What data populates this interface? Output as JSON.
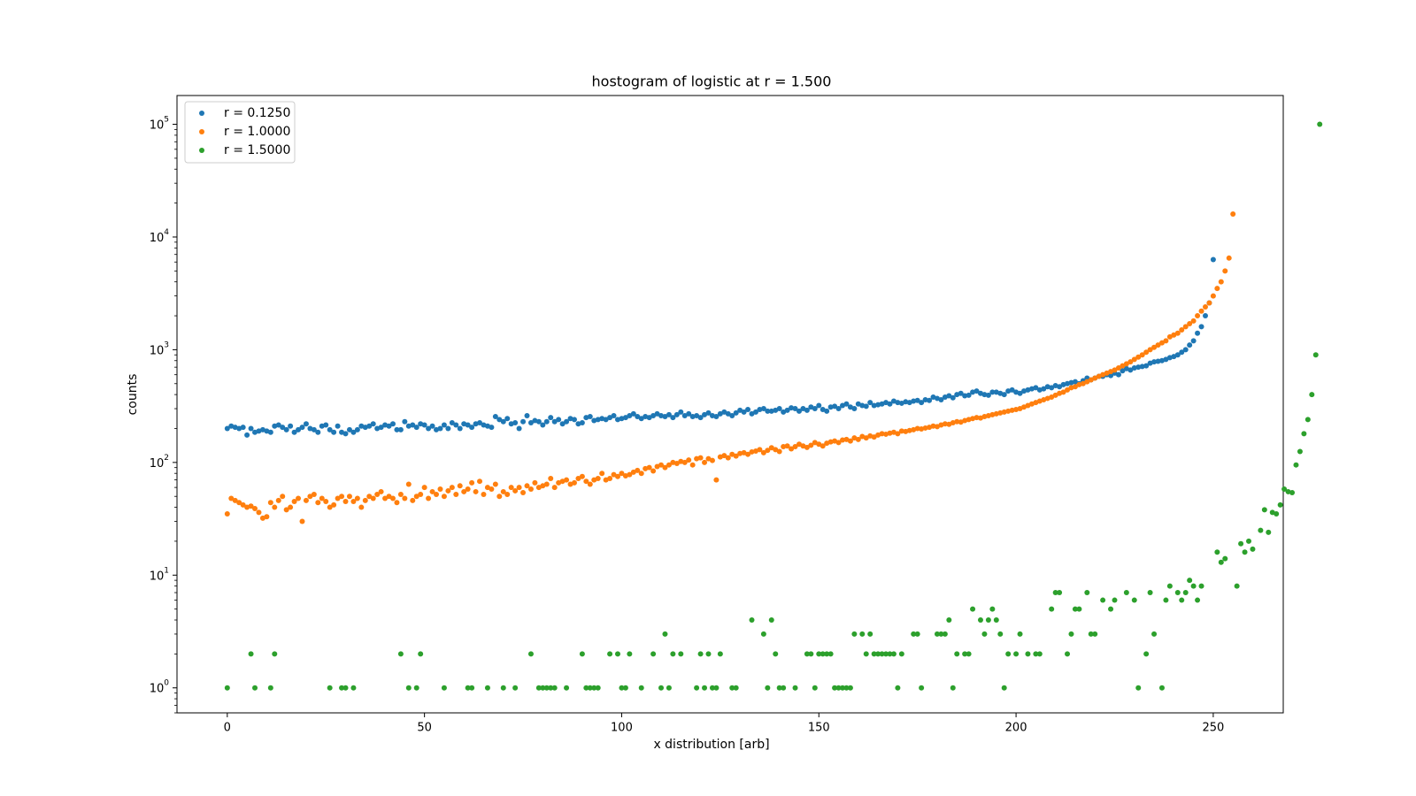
{
  "chart_data": {
    "type": "scatter",
    "title": "hostogram of logistic at r = 1.500",
    "xlabel": "x distribution [arb]",
    "ylabel": "counts",
    "xlim": [
      -12.75,
      267.75
    ],
    "ylim": [
      0.6,
      180000
    ],
    "yscale": "log",
    "grid": false,
    "legend_position": "top-left",
    "x_ticks": [
      0,
      50,
      100,
      150,
      200,
      250
    ],
    "x_tick_labels": [
      "0",
      "50",
      "100",
      "150",
      "200",
      "250"
    ],
    "y_ticks": [
      1,
      10,
      100,
      1000,
      10000,
      100000
    ],
    "y_tick_labels": [
      {
        "base": "10",
        "exp": "0"
      },
      {
        "base": "10",
        "exp": "1"
      },
      {
        "base": "10",
        "exp": "2"
      },
      {
        "base": "10",
        "exp": "3"
      },
      {
        "base": "10",
        "exp": "4"
      },
      {
        "base": "10",
        "exp": "5"
      }
    ],
    "series": [
      {
        "name": "r = 0.1250",
        "color": "#1f77b4",
        "x_start": 0,
        "x_step": 1,
        "values": [
          200,
          210,
          205,
          200,
          205,
          175,
          200,
          185,
          190,
          195,
          190,
          185,
          210,
          215,
          205,
          195,
          210,
          185,
          195,
          205,
          220,
          200,
          195,
          185,
          210,
          215,
          195,
          185,
          210,
          185,
          180,
          195,
          185,
          195,
          210,
          205,
          210,
          220,
          200,
          205,
          215,
          210,
          220,
          195,
          195,
          230,
          210,
          215,
          205,
          220,
          215,
          200,
          210,
          195,
          200,
          215,
          200,
          225,
          215,
          200,
          220,
          215,
          205,
          220,
          225,
          215,
          210,
          205,
          255,
          240,
          230,
          245,
          220,
          225,
          200,
          230,
          260,
          225,
          235,
          230,
          215,
          230,
          250,
          230,
          240,
          220,
          230,
          245,
          240,
          220,
          225,
          250,
          255,
          235,
          240,
          245,
          240,
          250,
          260,
          240,
          245,
          250,
          260,
          270,
          255,
          245,
          255,
          250,
          260,
          270,
          260,
          255,
          265,
          250,
          265,
          280,
          260,
          270,
          255,
          260,
          250,
          265,
          275,
          260,
          255,
          270,
          280,
          270,
          260,
          275,
          290,
          280,
          295,
          270,
          280,
          295,
          300,
          285,
          285,
          290,
          300,
          280,
          290,
          305,
          300,
          285,
          300,
          290,
          310,
          300,
          320,
          295,
          285,
          310,
          315,
          300,
          320,
          330,
          310,
          300,
          330,
          320,
          315,
          340,
          320,
          325,
          330,
          340,
          330,
          350,
          340,
          335,
          345,
          340,
          350,
          355,
          340,
          360,
          355,
          380,
          370,
          360,
          380,
          390,
          375,
          400,
          410,
          390,
          395,
          420,
          430,
          410,
          400,
          395,
          420,
          420,
          410,
          400,
          430,
          440,
          420,
          410,
          430,
          440,
          450,
          460,
          440,
          450,
          470,
          460,
          480,
          470,
          490,
          500,
          510,
          520,
          500,
          530,
          560,
          540,
          560,
          580,
          580,
          600,
          590,
          620,
          600,
          650,
          680,
          660,
          690,
          700,
          710,
          720,
          760,
          780,
          790,
          800,
          820,
          850,
          870,
          900,
          950,
          1000,
          1100,
          1200,
          1400,
          1600,
          2000,
          2600,
          6300
        ]
      },
      {
        "name": "r = 1.0000",
        "color": "#ff7f0e",
        "x_start": 0,
        "x_step": 1,
        "values": [
          35,
          48,
          46,
          44,
          42,
          40,
          41,
          39,
          36,
          32,
          33,
          44,
          40,
          46,
          50,
          38,
          40,
          45,
          48,
          30,
          46,
          50,
          52,
          44,
          48,
          45,
          40,
          42,
          48,
          50,
          45,
          50,
          45,
          48,
          40,
          46,
          50,
          48,
          52,
          55,
          48,
          50,
          48,
          44,
          52,
          48,
          64,
          46,
          50,
          52,
          60,
          48,
          55,
          52,
          58,
          50,
          56,
          60,
          52,
          62,
          55,
          58,
          66,
          55,
          68,
          52,
          60,
          58,
          64,
          50,
          55,
          52,
          60,
          56,
          60,
          54,
          62,
          58,
          66,
          60,
          62,
          64,
          72,
          60,
          66,
          68,
          70,
          64,
          66,
          72,
          75,
          68,
          64,
          70,
          72,
          80,
          70,
          72,
          78,
          75,
          80,
          76,
          78,
          82,
          85,
          80,
          88,
          90,
          84,
          92,
          95,
          90,
          95,
          100,
          98,
          102,
          100,
          105,
          95,
          108,
          110,
          100,
          108,
          104,
          70,
          112,
          115,
          110,
          118,
          114,
          120,
          122,
          118,
          124,
          126,
          130,
          122,
          128,
          135,
          130,
          125,
          138,
          140,
          132,
          138,
          145,
          140,
          136,
          142,
          150,
          145,
          140,
          148,
          152,
          155,
          150,
          158,
          160,
          155,
          165,
          160,
          170,
          165,
          172,
          168,
          175,
          180,
          178,
          182,
          185,
          180,
          190,
          188,
          192,
          195,
          200,
          198,
          202,
          205,
          210,
          208,
          215,
          220,
          218,
          225,
          230,
          228,
          235,
          240,
          245,
          250,
          248,
          255,
          260,
          265,
          270,
          275,
          280,
          285,
          290,
          295,
          300,
          310,
          320,
          330,
          340,
          350,
          360,
          370,
          380,
          395,
          410,
          420,
          440,
          460,
          470,
          490,
          500,
          520,
          540,
          560,
          580,
          600,
          620,
          640,
          660,
          690,
          720,
          750,
          780,
          820,
          860,
          900,
          950,
          1000,
          1050,
          1100,
          1150,
          1200,
          1300,
          1350,
          1400,
          1500,
          1600,
          1700,
          1800,
          2000,
          2200,
          2400,
          2600,
          3000,
          3500,
          4000,
          5000,
          6500,
          16000
        ]
      },
      {
        "name": "r = 1.5000",
        "color": "#2ca02c",
        "x_start": 0,
        "x_step": 1,
        "values": [
          1,
          null,
          null,
          null,
          null,
          null,
          2,
          1,
          null,
          null,
          null,
          1,
          2,
          null,
          null,
          null,
          null,
          null,
          null,
          null,
          null,
          null,
          null,
          null,
          null,
          null,
          1,
          null,
          null,
          1,
          1,
          null,
          1,
          null,
          null,
          null,
          null,
          null,
          null,
          null,
          null,
          null,
          null,
          null,
          2,
          null,
          1,
          null,
          1,
          2,
          null,
          null,
          null,
          null,
          null,
          1,
          null,
          null,
          null,
          null,
          null,
          1,
          1,
          null,
          null,
          null,
          1,
          null,
          null,
          null,
          1,
          null,
          null,
          1,
          null,
          null,
          null,
          2,
          null,
          1,
          1,
          1,
          1,
          1,
          null,
          null,
          1,
          null,
          null,
          null,
          2,
          1,
          1,
          1,
          1,
          null,
          null,
          2,
          null,
          2,
          1,
          1,
          2,
          null,
          null,
          1,
          null,
          null,
          2,
          null,
          1,
          3,
          1,
          2,
          null,
          2,
          null,
          null,
          null,
          1,
          2,
          1,
          2,
          1,
          1,
          2,
          null,
          null,
          1,
          1,
          null,
          null,
          null,
          4,
          null,
          null,
          3,
          1,
          4,
          2,
          1,
          1,
          null,
          null,
          1,
          null,
          null,
          2,
          2,
          1,
          2,
          2,
          2,
          2,
          1,
          1,
          1,
          1,
          1,
          3,
          null,
          3,
          2,
          3,
          2,
          2,
          2,
          2,
          2,
          2,
          1,
          2,
          null,
          null,
          3,
          3,
          1,
          null,
          null,
          null,
          3,
          3,
          3,
          4,
          1,
          2,
          null,
          2,
          2,
          5,
          null,
          4,
          3,
          4,
          5,
          4,
          3,
          1,
          2,
          null,
          2,
          3,
          null,
          2,
          null,
          2,
          2,
          null,
          null,
          5,
          7,
          7,
          null,
          2,
          3,
          5,
          5,
          null,
          7,
          3,
          3,
          null,
          6,
          null,
          5,
          6,
          null,
          null,
          7,
          null,
          6,
          1,
          null,
          2,
          7,
          3,
          null,
          1,
          6,
          8,
          null,
          7,
          6,
          7,
          9,
          8,
          6,
          8,
          null,
          null,
          null,
          16,
          13,
          14,
          null,
          null,
          8,
          19,
          16,
          20,
          17,
          null,
          25,
          38,
          24,
          36,
          35,
          42,
          58,
          55,
          54,
          95,
          125,
          180,
          240,
          400,
          900,
          100000
        ]
      }
    ]
  }
}
